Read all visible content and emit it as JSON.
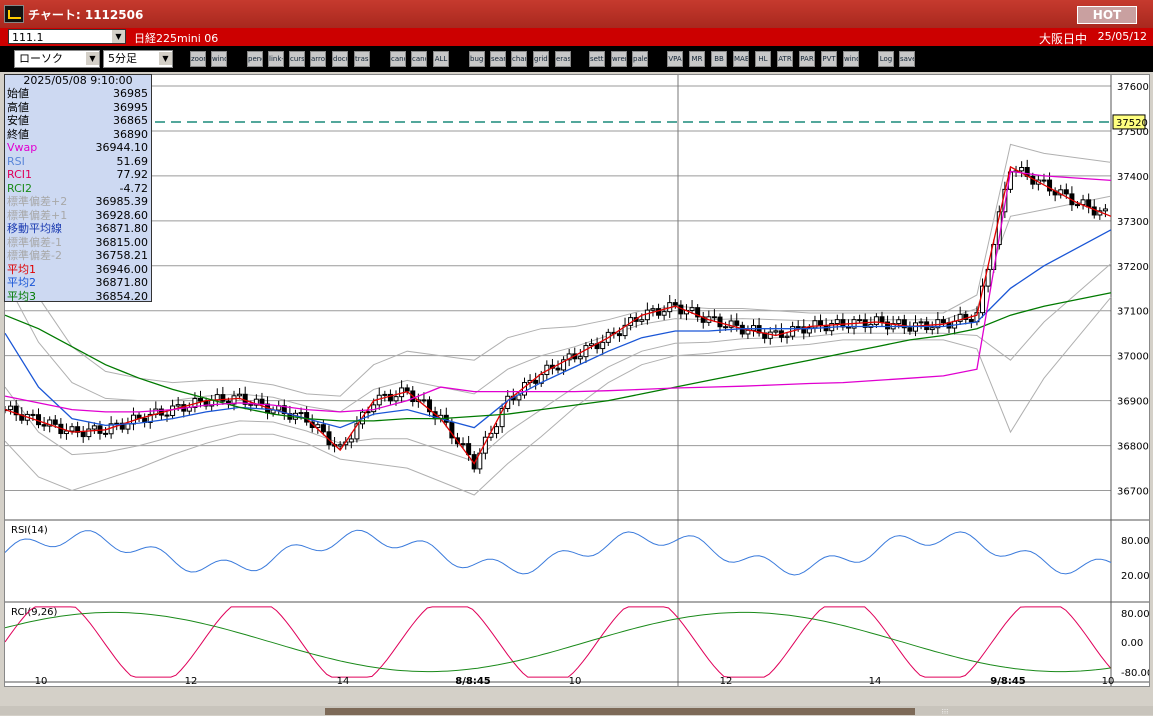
{
  "titlebar": {
    "title": "チャート: 1112506",
    "hot": "HOT"
  },
  "symbolbar": {
    "symbol": "111.1",
    "instrument": "日経225mini 06",
    "status": "大阪日中",
    "date": "25/05/12"
  },
  "toolbar": {
    "chart_type": "ローソク",
    "interval": "5分足",
    "buttons": [
      "zoom-icon",
      "window-icon",
      "pencil-icon",
      "link-icon",
      "cursor-icon",
      "arrow-icon",
      "document-icon",
      "trash-icon",
      "candle-icon",
      "candle-alt-icon",
      "ALL",
      "bug-icon",
      "search-icon",
      "chart-icon",
      "grid-icon",
      "eraser-icon",
      "settings-icon",
      "wrench-icon",
      "palette-icon",
      "VPA",
      "MR",
      "BB",
      "MAE",
      "HL",
      "ATR",
      "PAR",
      "PVT",
      "window-icon",
      "Log",
      "save-icon"
    ]
  },
  "colors": {
    "background": "#ffffff",
    "candle_up": "#ffffff",
    "candle_down": "#000000",
    "avg1": "#e00000",
    "avg2": "#1a56d6",
    "avg3": "#007a00",
    "vwap": "#e000d0",
    "rsi": "#3b7bdc",
    "rci1": "#e0005a",
    "rci2": "#1a8a1a",
    "hline": "#1a8a7a",
    "accent": "#c00000"
  },
  "datapanel": {
    "datetime": "2025/05/08  9:10:00",
    "rows": [
      {
        "label": "始値",
        "value": "36985",
        "color": "#000000"
      },
      {
        "label": "高値",
        "value": "36995",
        "color": "#000000"
      },
      {
        "label": "安値",
        "value": "36865",
        "color": "#000000"
      },
      {
        "label": "終値",
        "value": "36890",
        "color": "#000000"
      },
      {
        "label": "Vwap",
        "value": "36944.10",
        "color": "#e000d0"
      },
      {
        "label": "RSI",
        "value": "51.69",
        "color": "#5a86d8"
      },
      {
        "label": "RCI1",
        "value": "77.92",
        "color": "#e0005a"
      },
      {
        "label": "RCI2",
        "value": "-4.72",
        "color": "#1a8a1a"
      },
      {
        "label": "標準偏差+2",
        "value": "36985.39",
        "color": "#a8a8a8"
      },
      {
        "label": "標準偏差+1",
        "value": "36928.60",
        "color": "#a8a8a8"
      },
      {
        "label": "移動平均線",
        "value": "36871.80",
        "color": "#1a3ab0"
      },
      {
        "label": "標準偏差-1",
        "value": "36815.00",
        "color": "#a8a8a8"
      },
      {
        "label": "標準偏差-2",
        "value": "36758.21",
        "color": "#a8a8a8"
      },
      {
        "label": "平均1",
        "value": "36946.00",
        "color": "#e00000"
      },
      {
        "label": "平均2",
        "value": "36871.80",
        "color": "#1a56d6"
      },
      {
        "label": "平均3",
        "value": "36854.20",
        "color": "#007a00"
      }
    ]
  },
  "chart_data": {
    "type": "line",
    "ylim": [
      36650,
      37620
    ],
    "price_ticks": [
      "37600",
      "37500",
      "37400",
      "37300",
      "37200",
      "37100",
      "37000",
      "36900",
      "36800",
      "36700"
    ],
    "highlight_level": "37520",
    "x_ticks": [
      "10",
      "12",
      "14",
      "8/8:45",
      "10",
      "12",
      "14",
      "9/8:45",
      "10"
    ],
    "rsi": {
      "label": "RSI(14)",
      "ticks": [
        "80.00",
        "20.00"
      ]
    },
    "rci": {
      "label": "RCI(9,26)",
      "ticks": [
        "80.00",
        "0.00",
        "-80.00"
      ]
    },
    "series": [
      {
        "name": "平均1",
        "values": [
          36880,
          36855,
          36830,
          36835,
          36860,
          36880,
          36900,
          36905,
          36880,
          36860,
          36790,
          36900,
          36920,
          36860,
          36760,
          36900,
          36960,
          37000,
          37040,
          37090,
          37110,
          37080,
          37060,
          37045,
          37065,
          37070,
          37075,
          37065,
          37070,
          37090,
          37420,
          37380,
          37340,
          37310
        ]
      },
      {
        "name": "平均2",
        "values": [
          37050,
          36930,
          36860,
          36845,
          36850,
          36860,
          36875,
          36885,
          36880,
          36860,
          36840,
          36870,
          36880,
          36860,
          36840,
          36900,
          36940,
          36975,
          37010,
          37040,
          37055,
          37055,
          37060,
          37060,
          37060,
          37065,
          37065,
          37065,
          37065,
          37075,
          37150,
          37200,
          37240,
          37280
        ]
      },
      {
        "name": "平均3",
        "values": [
          37090,
          37060,
          37020,
          36980,
          36950,
          36925,
          36905,
          36885,
          36870,
          36860,
          36855,
          36855,
          36860,
          36860,
          36865,
          36870,
          36880,
          36890,
          36900,
          36915,
          36930,
          36945,
          36960,
          36975,
          36990,
          37005,
          37020,
          37035,
          37045,
          37060,
          37090,
          37110,
          37125,
          37140
        ]
      },
      {
        "name": "Vwap",
        "values": [
          36910,
          36895,
          36880,
          36875,
          36875,
          36880,
          36890,
          36895,
          36890,
          36880,
          36875,
          36880,
          36900,
          36930,
          36920,
          36920,
          36920,
          36920,
          36922,
          36925,
          36928,
          36930,
          36932,
          36935,
          36938,
          36940,
          36945,
          36950,
          36955,
          36970,
          37410,
          37400,
          37395,
          37390
        ]
      }
    ]
  }
}
